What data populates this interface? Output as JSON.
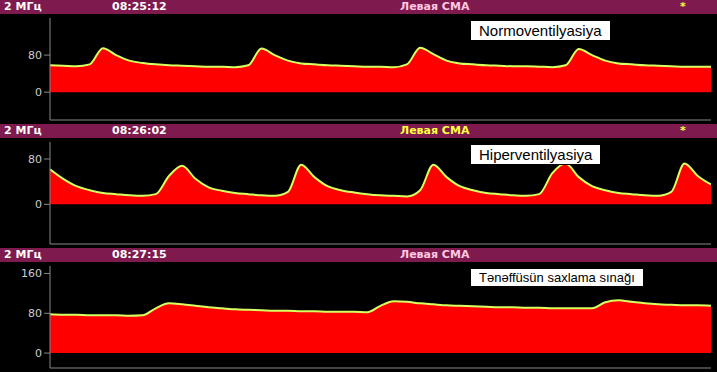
{
  "chart_data": [
    {
      "type": "area",
      "frequency": "2 МГц",
      "time": "08:25:12",
      "title": "Левая СМА",
      "status": "*",
      "annotation": "Normoventilyasiya",
      "color": "#ff0000",
      "x": [
        0,
        2,
        4,
        6,
        8,
        10,
        12,
        14,
        16,
        18,
        20,
        22,
        24,
        26,
        28,
        30,
        32,
        34,
        36,
        38,
        40,
        42,
        44,
        46,
        48,
        50,
        52,
        54,
        56,
        58,
        60,
        62,
        64,
        66,
        68,
        70,
        72,
        74,
        76,
        78,
        80,
        82,
        84,
        86,
        88,
        90,
        92,
        94,
        96,
        98,
        100
      ],
      "values": [
        58,
        57,
        56,
        60,
        95,
        80,
        68,
        63,
        60,
        58,
        57,
        56,
        55,
        55,
        54,
        58,
        94,
        80,
        68,
        62,
        60,
        58,
        57,
        56,
        55,
        55,
        54,
        60,
        96,
        82,
        68,
        62,
        60,
        58,
        57,
        56,
        56,
        55,
        54,
        58,
        93,
        80,
        68,
        62,
        60,
        58,
        57,
        56,
        55,
        55,
        55
      ],
      "xlim": [
        0,
        100
      ],
      "ylim": [
        -60,
        160
      ],
      "yticks": [
        0,
        80
      ],
      "tick_labels": "y",
      "grid": false
    },
    {
      "type": "area",
      "frequency": "2 МГц",
      "time": "08:26:02",
      "title": "Левая СМА",
      "status": "*",
      "annotation": "Hiperventilyasiya",
      "color": "#ff0000",
      "x": [
        0,
        2,
        4,
        6,
        8,
        10,
        12,
        14,
        16,
        18,
        20,
        22,
        24,
        26,
        28,
        30,
        32,
        34,
        36,
        38,
        40,
        42,
        44,
        46,
        48,
        50,
        52,
        54,
        56,
        58,
        60,
        62,
        64,
        66,
        68,
        70,
        72,
        74,
        76,
        78,
        80,
        82,
        84,
        86,
        88,
        90,
        92,
        94,
        96,
        98,
        100
      ],
      "values": [
        62,
        45,
        32,
        25,
        20,
        18,
        16,
        15,
        18,
        50,
        68,
        45,
        30,
        24,
        20,
        18,
        16,
        15,
        22,
        70,
        48,
        32,
        25,
        21,
        18,
        16,
        15,
        14,
        25,
        70,
        48,
        32,
        25,
        20,
        18,
        16,
        15,
        18,
        55,
        72,
        48,
        32,
        25,
        20,
        18,
        16,
        15,
        22,
        72,
        50,
        35
      ],
      "xlim": [
        0,
        100
      ],
      "ylim": [
        -70,
        110
      ],
      "yticks": [
        0,
        80
      ],
      "tick_labels": "y",
      "grid": false
    },
    {
      "type": "area",
      "frequency": "2 МГц",
      "time": "08:27:15",
      "title": "Левая СМА",
      "annotation": "Tənəffüsün saxlama sınağı",
      "color": "#ff0000",
      "x": [
        0,
        2,
        4,
        6,
        8,
        10,
        12,
        14,
        16,
        18,
        20,
        22,
        24,
        26,
        28,
        30,
        32,
        34,
        36,
        38,
        40,
        42,
        44,
        46,
        48,
        50,
        52,
        54,
        56,
        58,
        60,
        62,
        64,
        66,
        68,
        70,
        72,
        74,
        76,
        78,
        80,
        82,
        84,
        86,
        88,
        90,
        92,
        94,
        96,
        98,
        100
      ],
      "values": [
        78,
        77,
        77,
        76,
        76,
        76,
        75,
        76,
        90,
        100,
        98,
        95,
        92,
        90,
        88,
        87,
        86,
        85,
        85,
        84,
        84,
        83,
        83,
        83,
        82,
        95,
        104,
        103,
        100,
        98,
        96,
        95,
        94,
        93,
        92,
        92,
        91,
        91,
        90,
        90,
        90,
        90,
        102,
        106,
        103,
        100,
        98,
        97,
        96,
        96,
        95
      ],
      "xlim": [
        0,
        100
      ],
      "ylim": [
        -30,
        175
      ],
      "yticks": [
        0,
        80,
        160
      ],
      "tick_labels": "y",
      "grid": false
    }
  ]
}
